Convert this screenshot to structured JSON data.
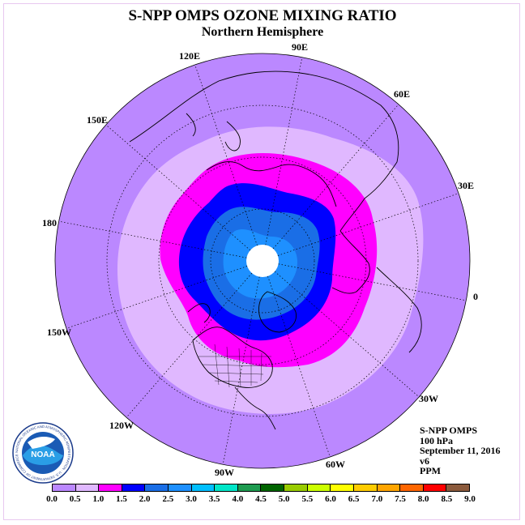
{
  "title": "S-NPP OMPS OZONE MIXING RATIO",
  "subtitle": "Northern Hemisphere",
  "longitude_labels": [
    "90E",
    "60E",
    "30E",
    "0",
    "30W",
    "60W",
    "90W",
    "120W",
    "150W",
    "180",
    "150E",
    "120E"
  ],
  "info": {
    "instrument": "S-NPP OMPS",
    "level": "100 hPa",
    "date": "September 11, 2016",
    "version": "v6",
    "units": "PPM"
  },
  "logo": {
    "text": "NOAA",
    "ring_text": "NATIONAL OCEANIC AND ATMOSPHERIC ADMINISTRATION · U.S. DEPARTMENT OF COMMERCE"
  },
  "colorbar": {
    "ticks": [
      "0.0",
      "0.5",
      "1.0",
      "1.5",
      "2.0",
      "2.5",
      "3.0",
      "3.5",
      "4.0",
      "4.5",
      "5.0",
      "5.5",
      "6.0",
      "6.5",
      "7.0",
      "7.5",
      "8.0",
      "8.5",
      "9.0"
    ],
    "colors": [
      "#bb88ff",
      "#e0b8ff",
      "#ff00ff",
      "#0000ff",
      "#1a6ee6",
      "#1e90ff",
      "#00bfff",
      "#00e6c8",
      "#1e9b50",
      "#006400",
      "#99cc00",
      "#ccff00",
      "#ffff00",
      "#ffcc00",
      "#ffa500",
      "#ff6600",
      "#ff0000",
      "#8b5a3c"
    ]
  },
  "map_colors": {
    "outer": "#bb88ff",
    "band_0_5_1_0": "#e0b8ff",
    "band_1_0_1_5": "#ff00ff",
    "band_1_5_2_0": "#0000ff",
    "band_2_0_2_5": "#1a6ee6",
    "band_2_5_3_0": "#1e90ff",
    "pole_gap": "#ffffff"
  }
}
